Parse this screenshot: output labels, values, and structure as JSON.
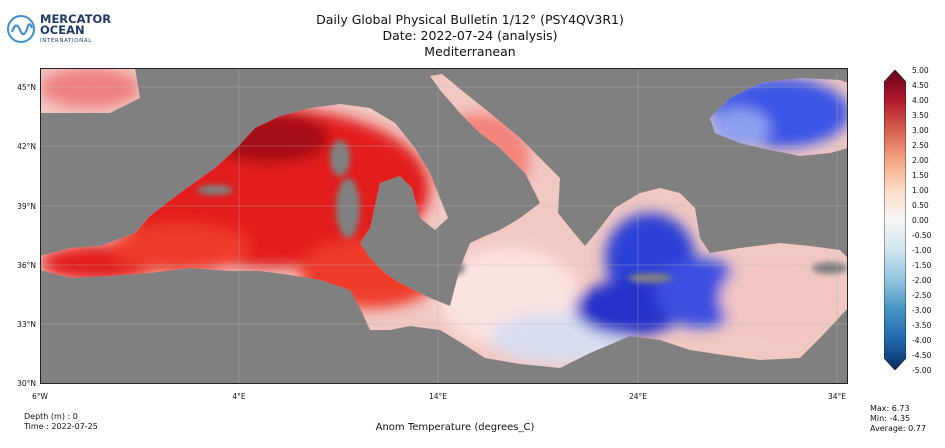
{
  "header": {
    "brand_line1": "MERCATOR",
    "brand_line2": "OCEAN",
    "brand_line3": "INTERNATIONAL",
    "title_line1": "Daily Global Physical Bulletin 1/12° (PSY4QV3R1)",
    "title_line2": "Date: 2022-07-24 (analysis)",
    "title_line3": "Mediterranean"
  },
  "map": {
    "lat_labels": [
      "45°N",
      "42°N",
      "39°N",
      "36°N",
      "33°N",
      "30°N"
    ],
    "lon_labels": [
      "6°W",
      "4°E",
      "14°E",
      "24°E",
      "34°E"
    ],
    "land_color": "#808080"
  },
  "colorbar": {
    "labels": [
      "5.00",
      "4.50",
      "4.00",
      "3.50",
      "3.00",
      "2.50",
      "2.00",
      "1.50",
      "1.00",
      "0.50",
      "0.00",
      "-0.50",
      "-1.00",
      "-1.50",
      "-2.00",
      "-2.50",
      "-3.00",
      "-3.50",
      "-4.00",
      "-4.50",
      "-5.00"
    ],
    "colors": [
      "#67001f",
      "#b2182b",
      "#d6604d",
      "#f4a582",
      "#fddbc7",
      "#f7f7f7",
      "#d1e5f0",
      "#92c5de",
      "#4393c3",
      "#2166ac",
      "#053061"
    ]
  },
  "footer": {
    "depth": "Depth (m) : 0",
    "time": "Time : 2022-07-25",
    "variable": "Anom Temperature (degrees_C)",
    "max": "Max:  6.73",
    "min": "Min:  -4.35",
    "average": "Average:  0.77"
  }
}
